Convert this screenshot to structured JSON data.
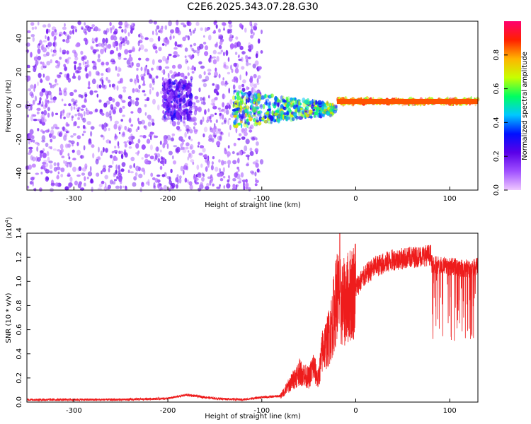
{
  "title": "C2E6.2025.343.07.28.G30",
  "colors": {
    "snr_line": "#ee1c1c",
    "axis": "#000000",
    "background": "#ffffff",
    "colormap": [
      "#f0c8ff",
      "#a050ff",
      "#5a00e8",
      "#0010ff",
      "#00c8ff",
      "#00ff60",
      "#c8ff00",
      "#ffb400",
      "#ff2000",
      "#ff006e"
    ]
  },
  "chart_data": [
    {
      "type": "heatmap",
      "name": "spectrogram",
      "xlabel": "Height of straight line (km)",
      "ylabel": "Frequency (Hz)",
      "xlim": [
        -350,
        130
      ],
      "ylim": [
        -50,
        50
      ],
      "x_ticks": [
        -300,
        -200,
        -100,
        0,
        100
      ],
      "y_ticks": [
        -40,
        -20,
        0,
        20,
        40
      ],
      "regions": [
        {
          "description": "broadband noise",
          "x_range": [
            -350,
            -100
          ],
          "freq_range": [
            -50,
            50
          ],
          "amplitude": 0.12
        },
        {
          "description": "noise blob",
          "x_range": [
            -205,
            -175
          ],
          "freq_range": [
            -8,
            15
          ],
          "amplitude": 0.2
        },
        {
          "description": "signal band",
          "x_range": [
            -130,
            -20
          ],
          "freq_range": [
            -15,
            12
          ],
          "amplitude": 0.35
        },
        {
          "description": "narrow carrier",
          "x_range": [
            -20,
            130
          ],
          "freq_range": [
            0,
            5
          ],
          "amplitude": 0.85
        }
      ],
      "colorbar": {
        "label": "Normalized spectral amplitude",
        "range": [
          0,
          1
        ],
        "ticks": [
          0.0,
          0.2,
          0.4,
          0.6,
          0.8
        ]
      }
    },
    {
      "type": "line",
      "name": "snr",
      "xlabel": "Height of straight line (km)",
      "ylabel": "SNR (10 * v/v)",
      "scale_label": "(x10",
      "scale_exp": "4",
      "scale_close": ")",
      "xlim": [
        -350,
        130
      ],
      "ylim": [
        0,
        1.4
      ],
      "x_ticks": [
        -300,
        -200,
        -100,
        0,
        100
      ],
      "y_ticks": [
        0.0,
        0.2,
        0.4,
        0.6,
        0.8,
        1.0,
        1.2,
        1.4
      ],
      "series": [
        {
          "name": "SNR",
          "x": [
            -350,
            -250,
            -200,
            -180,
            -150,
            -120,
            -100,
            -80,
            -70,
            -60,
            -50,
            -45,
            -40,
            -35,
            -30,
            -25,
            -20,
            -15,
            -10,
            -5,
            0,
            10,
            20,
            30,
            40,
            60,
            80,
            100,
            120,
            130
          ],
          "y": [
            0.02,
            0.02,
            0.03,
            0.06,
            0.03,
            0.02,
            0.04,
            0.05,
            0.15,
            0.25,
            0.2,
            0.3,
            0.18,
            0.45,
            0.5,
            0.65,
            0.9,
            0.8,
            0.85,
            0.9,
            0.95,
            1.05,
            1.12,
            1.15,
            1.18,
            1.2,
            1.22,
            1.2,
            1.18,
            1.2
          ],
          "max": 1.4
        }
      ]
    }
  ]
}
